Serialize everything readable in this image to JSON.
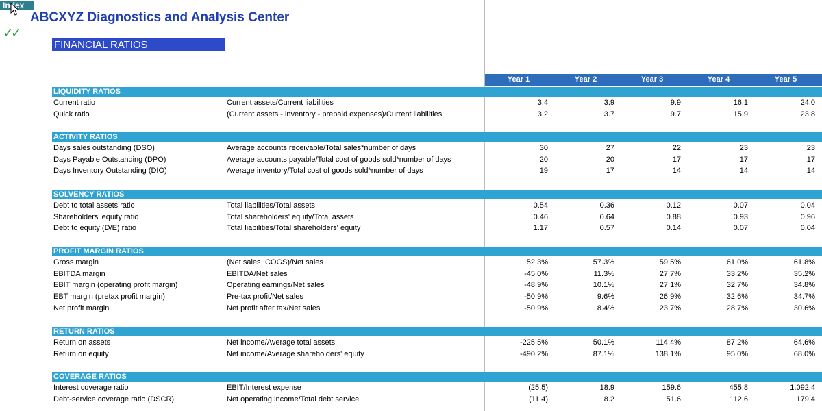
{
  "index_button": "Index",
  "title": "ABCXYZ Diagnostics and Analysis Center",
  "subtitle": "FINANCIAL RATIOS",
  "years": [
    "Year 1",
    "Year 2",
    "Year 3",
    "Year 4",
    "Year 5"
  ],
  "sections": [
    {
      "title": "LIQUIDITY RATIOS",
      "rows": [
        {
          "label": "Current ratio",
          "formula": "Current assets/Current liabilities",
          "values": [
            "3.4",
            "3.9",
            "9.9",
            "16.1",
            "24.0"
          ]
        },
        {
          "label": "Quick ratio",
          "formula": "(Current assets - inventory - prepaid expenses)/Current liabilities",
          "values": [
            "3.2",
            "3.7",
            "9.7",
            "15.9",
            "23.8"
          ]
        }
      ]
    },
    {
      "title": "ACTIVITY RATIOS",
      "rows": [
        {
          "label": "Days sales outstanding (DSO)",
          "formula": "Average accounts receivable/Total sales*number of days",
          "values": [
            "30",
            "27",
            "22",
            "23",
            "23"
          ]
        },
        {
          "label": "Days Payable Outstanding (DPO)",
          "formula": "Average accounts payable/Total cost of goods sold*number of days",
          "values": [
            "20",
            "20",
            "17",
            "17",
            "17"
          ]
        },
        {
          "label": "Days Inventory Outstanding (DIO)",
          "formula": "Average inventory/Total cost of goods sold*number of days",
          "values": [
            "19",
            "17",
            "14",
            "14",
            "14"
          ]
        }
      ]
    },
    {
      "title": "SOLVENCY RATIOS",
      "rows": [
        {
          "label": "Debt to total assets ratio",
          "formula": "Total liabilities/Total assets",
          "values": [
            "0.54",
            "0.36",
            "0.12",
            "0.07",
            "0.04"
          ]
        },
        {
          "label": "Shareholders' equity ratio",
          "formula": "Total shareholders' equity/Total assets",
          "values": [
            "0.46",
            "0.64",
            "0.88",
            "0.93",
            "0.96"
          ]
        },
        {
          "label": "Debt to equity (D/E) ratio",
          "formula": "Total liabilities/Total shareholders' equity",
          "values": [
            "1.17",
            "0.57",
            "0.14",
            "0.07",
            "0.04"
          ]
        }
      ]
    },
    {
      "title": "PROFIT MARGIN RATIOS",
      "rows": [
        {
          "label": "Gross margin",
          "formula": "(Net sales−COGS)/Net sales",
          "values": [
            "52.3%",
            "57.3%",
            "59.5%",
            "61.0%",
            "61.8%"
          ]
        },
        {
          "label": "EBITDA margin",
          "formula": "EBITDA/Net sales",
          "values": [
            "-45.0%",
            "11.3%",
            "27.7%",
            "33.2%",
            "35.2%"
          ]
        },
        {
          "label": "EBIT margin (operating profit margin)",
          "formula": "Operating earnings/Net sales",
          "values": [
            "-48.9%",
            "10.1%",
            "27.1%",
            "32.7%",
            "34.8%"
          ]
        },
        {
          "label": "EBT margin (pretax profit margin)",
          "formula": "Pre-tax profit/Net sales",
          "values": [
            "-50.9%",
            "9.6%",
            "26.9%",
            "32.6%",
            "34.7%"
          ]
        },
        {
          "label": "Net profit margin",
          "formula": "Net profit after tax/Net sales",
          "values": [
            "-50.9%",
            "8.4%",
            "23.7%",
            "28.7%",
            "30.6%"
          ]
        }
      ]
    },
    {
      "title": "RETURN RATIOS",
      "rows": [
        {
          "label": "Return on assets",
          "formula": "Net income/Average total assets",
          "values": [
            "-225.5%",
            "50.1%",
            "114.4%",
            "87.2%",
            "64.6%"
          ]
        },
        {
          "label": "Return on equity",
          "formula": "Net income/Average shareholders' equity",
          "values": [
            "-490.2%",
            "87.1%",
            "138.1%",
            "95.0%",
            "68.0%"
          ]
        }
      ]
    },
    {
      "title": "COVERAGE RATIOS",
      "rows": [
        {
          "label": "Interest coverage ratio",
          "formula": "EBIT/Interest expense",
          "values": [
            "(25.5)",
            "18.9",
            "159.6",
            "455.8",
            "1,092.4"
          ]
        },
        {
          "label": "Debt-service coverage ratio (DSCR)",
          "formula": "Net operating income/Total debt service",
          "values": [
            "(11.4)",
            "8.2",
            "51.6",
            "112.6",
            "179.4"
          ]
        }
      ]
    }
  ]
}
